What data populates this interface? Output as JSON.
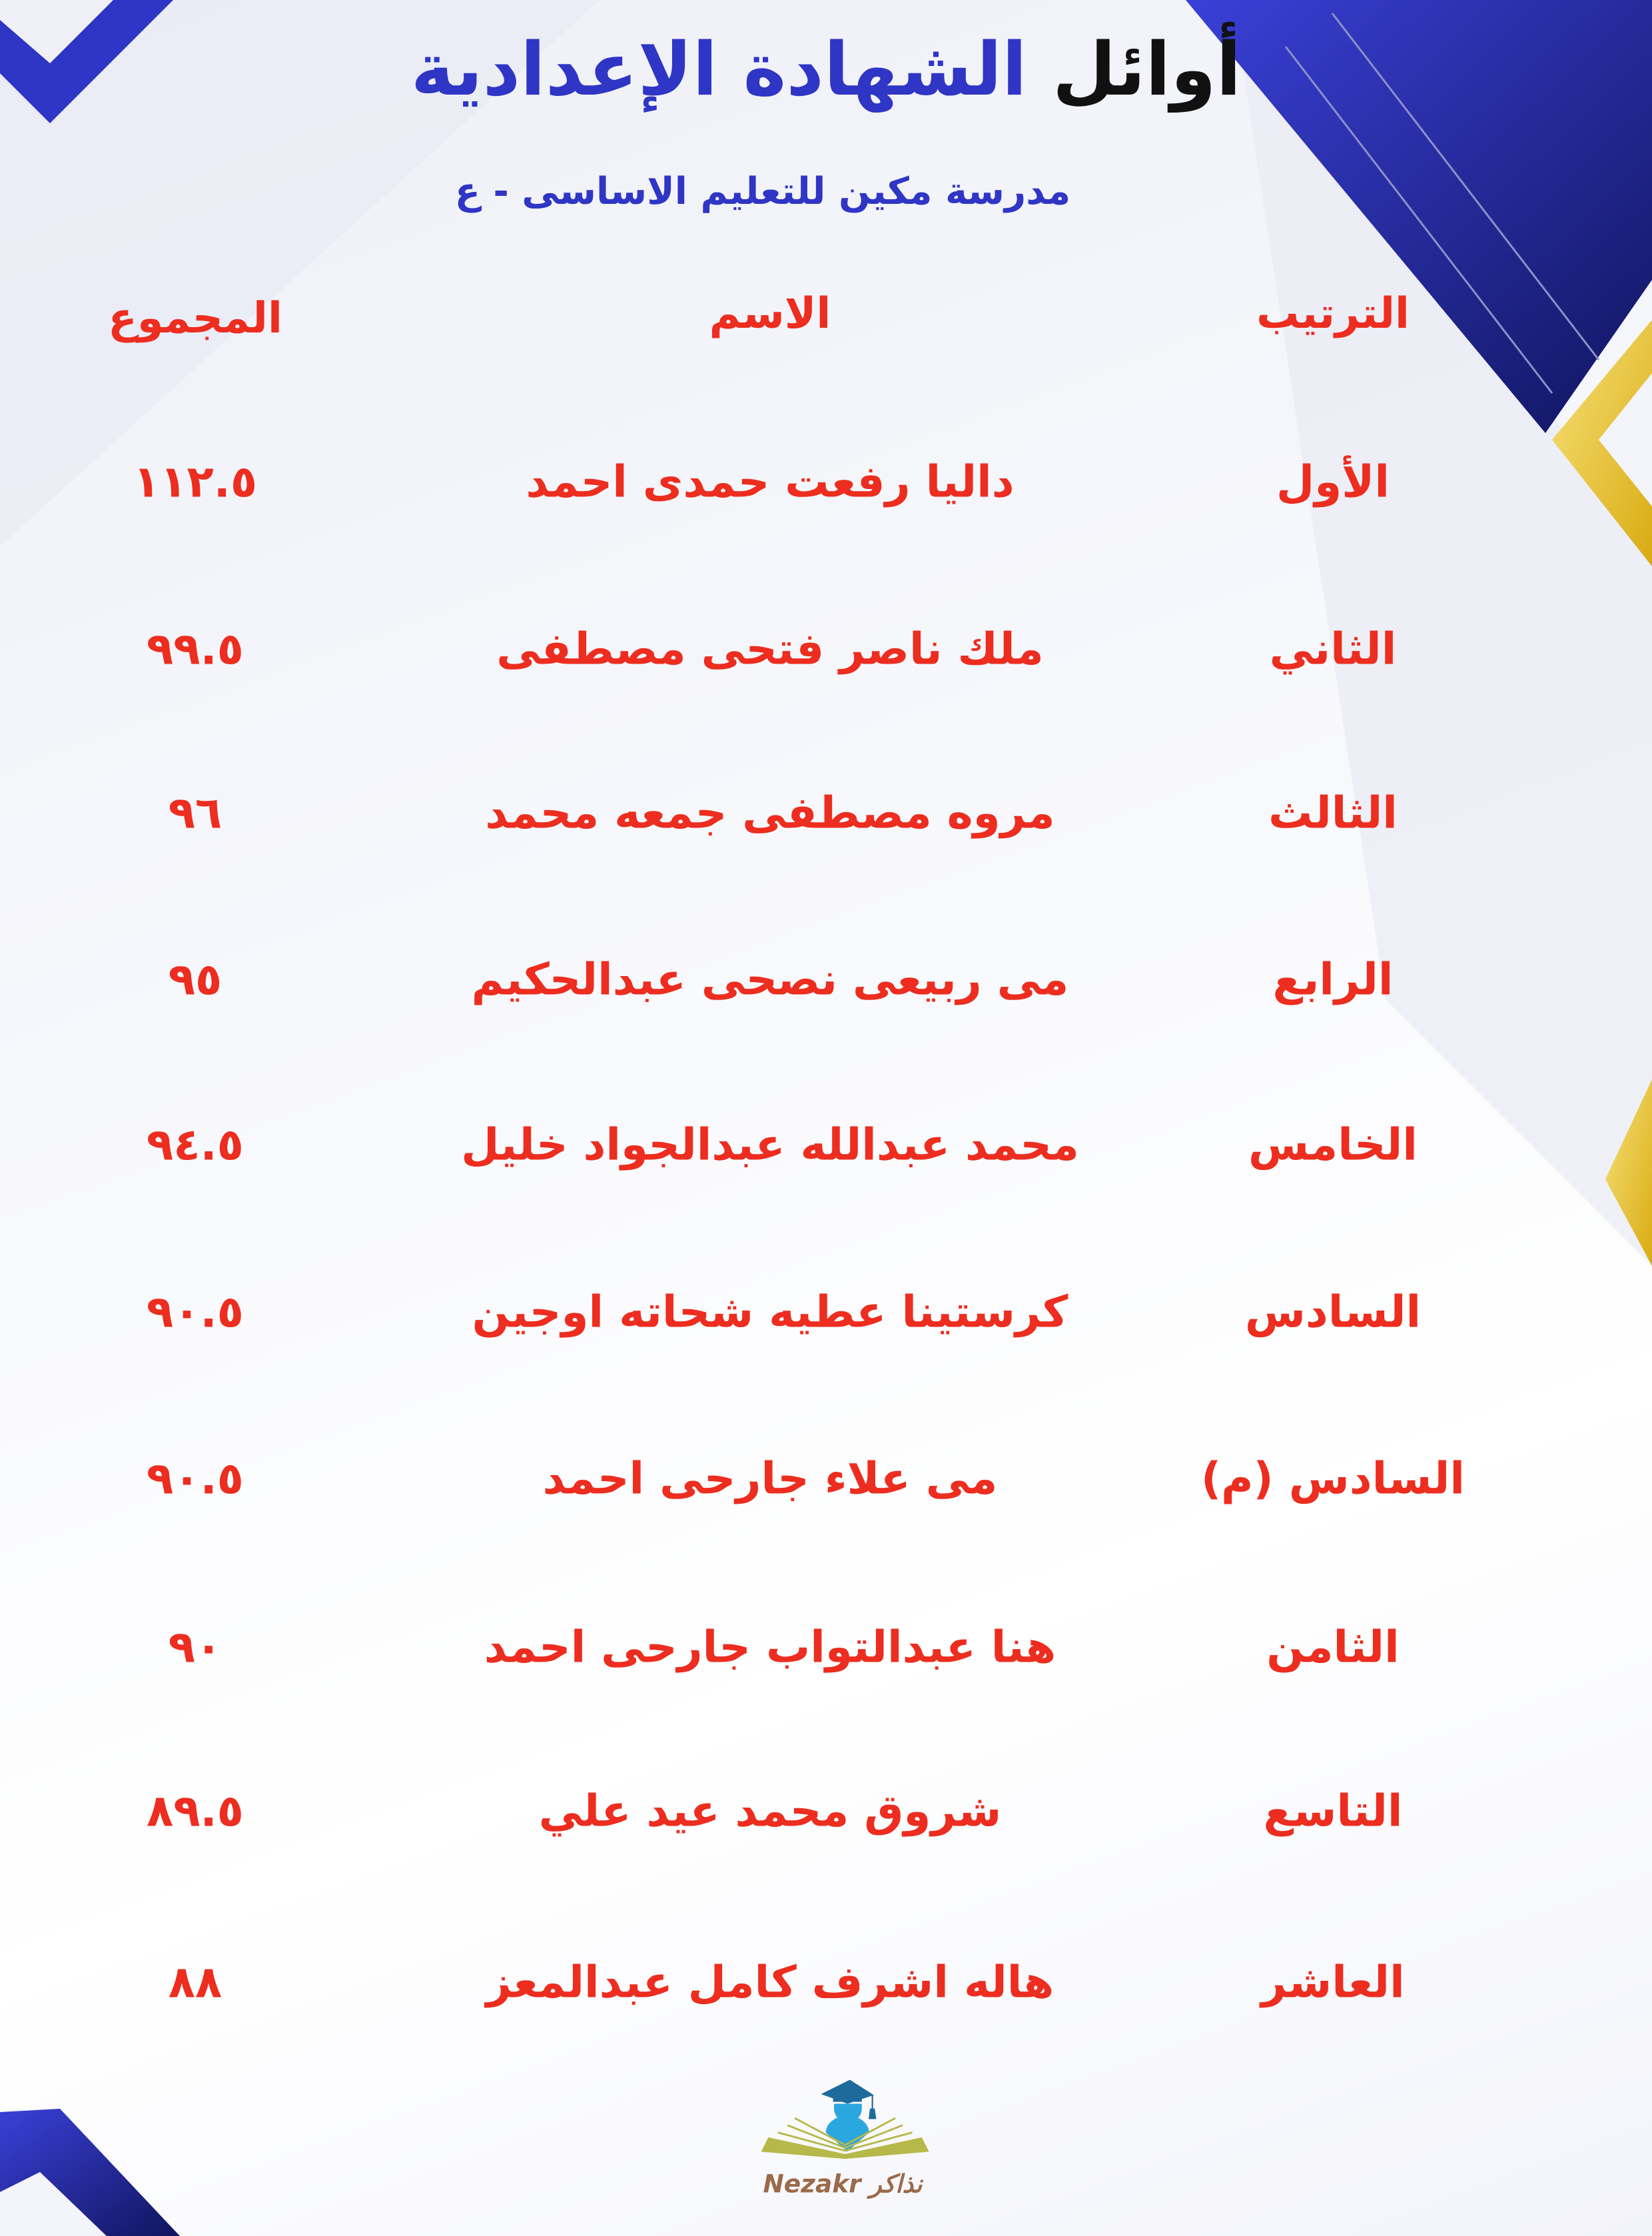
{
  "title": {
    "part1": "أوائل",
    "part2": "الشهادة الإعدادية"
  },
  "subtitle": "مدرسة مكين للتعليم الاساسى - ع",
  "columns": {
    "rank": "الترتيب",
    "name": "الاسم",
    "total": "المجموع"
  },
  "rows": [
    {
      "rank": "الأول",
      "name": "داليا رفعت حمدى احمد",
      "total": "١١٢.٥"
    },
    {
      "rank": "الثاني",
      "name": "ملك ناصر فتحى مصطفى",
      "total": "٩٩.٥"
    },
    {
      "rank": "الثالث",
      "name": "مروه مصطفى جمعه محمد",
      "total": "٩٦"
    },
    {
      "rank": "الرابع",
      "name": "مى ربيعى نصحى عبدالحكيم",
      "total": "٩٥"
    },
    {
      "rank": "الخامس",
      "name": "محمد عبدالله عبدالجواد خليل",
      "total": "٩٤.٥"
    },
    {
      "rank": "السادس",
      "name": "كرستينا عطيه شحاته اوجين",
      "total": "٩٠.٥"
    },
    {
      "rank": "السادس (م)",
      "name": "مى علاء جارحى احمد",
      "total": "٩٠.٥"
    },
    {
      "rank": "الثامن",
      "name": "هنا عبدالتواب جارحى احمد",
      "total": "٩٠"
    },
    {
      "rank": "التاسع",
      "name": "شروق محمد عيد علي",
      "total": "٨٩.٥"
    },
    {
      "rank": "العاشر",
      "name": "هاله اشرف كامل عبدالمعز",
      "total": "٨٨"
    }
  ],
  "logo": {
    "text_en": "Nezakr",
    "text_ar": "نذاكر"
  },
  "colors": {
    "accent_blue": "#2f35c4",
    "text_red": "#ec2d1f",
    "gold": "#e8c320",
    "dark_blue": "#1c2390"
  }
}
